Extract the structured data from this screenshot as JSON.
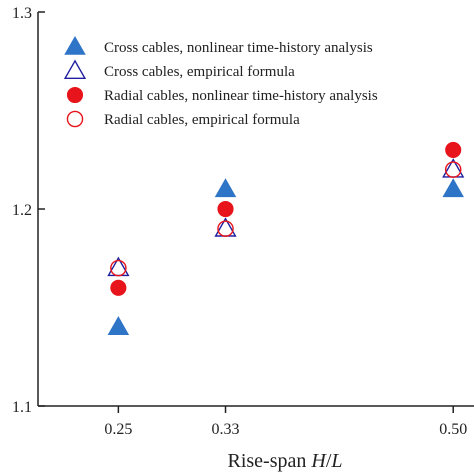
{
  "chart_data": {
    "type": "scatter",
    "title": "",
    "xlabel": "Rise-span H/L",
    "xlabel_main": "Rise-span ",
    "xlabel_italic_1": "H",
    "xlabel_slash": "/",
    "xlabel_italic_2": "L",
    "ylabel": "",
    "categories": [
      "0.25",
      "0.33",
      "0.50"
    ],
    "x": [
      0.25,
      0.33,
      0.5
    ],
    "xlim": [
      0.19,
      0.52
    ],
    "ylim": [
      1.1,
      1.3
    ],
    "y_ticks": [
      "1.1",
      "1.2",
      "1.3"
    ],
    "legend_position": "top",
    "grid": false,
    "series": [
      {
        "name": "Cross cables, nonlinear time-history analysis",
        "marker": "triangle",
        "filled": true,
        "color": "#2E75C8",
        "values": [
          1.14,
          1.21,
          1.21
        ]
      },
      {
        "name": "Cross cables, empirical formula",
        "marker": "triangle",
        "filled": false,
        "color": "#1F1FA0",
        "values": [
          1.17,
          1.19,
          1.22
        ]
      },
      {
        "name": "Radial cables, nonlinear time-history analysis",
        "marker": "circle",
        "filled": true,
        "color": "#E8141B",
        "values": [
          1.16,
          1.2,
          1.23
        ]
      },
      {
        "name": "Radial cables, empirical formula",
        "marker": "circle",
        "filled": false,
        "color": "#E8141B",
        "values": [
          1.17,
          1.19,
          1.22
        ]
      }
    ]
  }
}
